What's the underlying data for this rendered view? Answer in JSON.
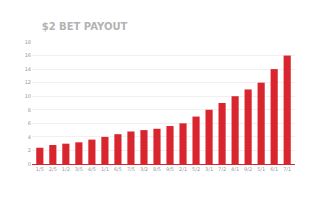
{
  "chart_data": {
    "type": "bar",
    "title": "$2 BET PAYOUT",
    "categories": [
      "1/5",
      "2/5",
      "1/2",
      "3/5",
      "4/5",
      "1/1",
      "6/5",
      "7/5",
      "3/2",
      "8/5",
      "9/5",
      "2/1",
      "5/2",
      "3/1",
      "7/2",
      "4/1",
      "9/2",
      "5/1",
      "6/1",
      "7/1"
    ],
    "values": [
      2.4,
      2.8,
      3.0,
      3.2,
      3.6,
      4.0,
      4.4,
      4.8,
      5.0,
      5.2,
      5.6,
      6.0,
      7,
      8,
      9,
      10,
      11,
      12,
      14,
      16
    ],
    "color": "#d9262e",
    "ylim": [
      0,
      18
    ],
    "yticks": [
      0,
      2,
      4,
      6,
      8,
      10,
      12,
      14,
      16,
      18
    ],
    "grid": true
  }
}
